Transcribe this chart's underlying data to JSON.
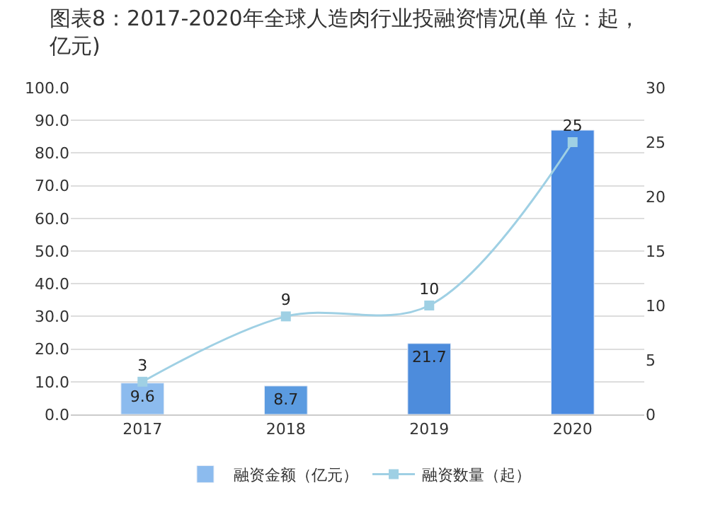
{
  "chart_data": {
    "type": "bar",
    "title": "图表8：2017-2020年全球人造肉行业投融资情况(单 位：起，亿元)",
    "categories": [
      "2017",
      "2018",
      "2019",
      "2020"
    ],
    "series": [
      {
        "name": "融资金额（亿元）",
        "color": "#5b9be0",
        "colors": [
          "#8cbbee",
          "#5b9be0",
          "#4d8cdc",
          "#4a8ae0"
        ],
        "values": [
          9.6,
          8.7,
          21.7,
          87
        ],
        "value_labels": [
          "9.6",
          "8.7",
          "21.7",
          null
        ]
      },
      {
        "name": "融资数量（起）",
        "type": "line",
        "axis": "y2",
        "color": "#9fd0e4",
        "marker": "square",
        "values": [
          3,
          9,
          10,
          25
        ],
        "value_labels": [
          "3",
          "9",
          "10",
          "25"
        ]
      }
    ],
    "ylim": [
      0,
      100
    ],
    "yticks": [
      {
        "value": 0,
        "label": "0.0"
      },
      {
        "value": 10,
        "label": "10.0"
      },
      {
        "value": 20,
        "label": "20.0"
      },
      {
        "value": 30,
        "label": "30.0"
      },
      {
        "value": 40,
        "label": "40.0"
      },
      {
        "value": 50,
        "label": "50.0"
      },
      {
        "value": 60,
        "label": "60.0"
      },
      {
        "value": 70,
        "label": "70.0"
      },
      {
        "value": 80,
        "label": "80.0"
      },
      {
        "value": 90,
        "label": "90.0"
      },
      {
        "value": 100,
        "label": "100.0"
      }
    ],
    "y2lim": [
      0,
      30
    ],
    "y2ticks": [
      0,
      5,
      10,
      15,
      20,
      25,
      30
    ],
    "grid": "y",
    "legend": "bottom"
  }
}
